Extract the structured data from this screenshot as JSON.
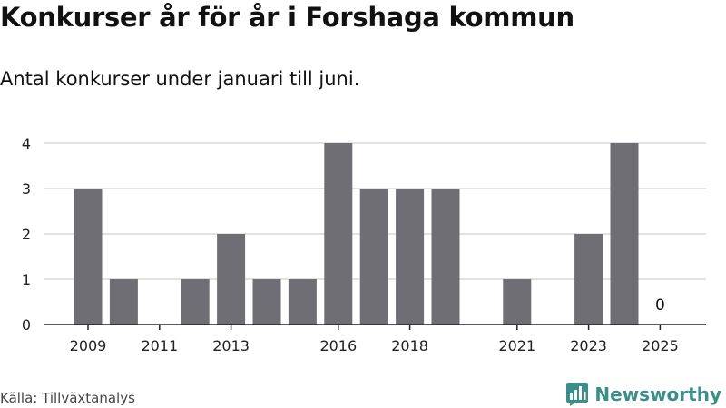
{
  "header": {
    "title": "Konkurser år för år i Forshaga kommun",
    "subtitle": "Antal konkurser under januari till juni."
  },
  "footer": {
    "source": "Källa: Tillväxtanalys",
    "brand": "Newsworthy"
  },
  "colors": {
    "bar": "#6f6e74",
    "grid": "#d9d9d9",
    "axis": "#222222",
    "brand": "#3a8f8a"
  },
  "icons": {
    "logo": "bar-chart-speech-bubble-icon"
  },
  "chart_data": {
    "type": "bar",
    "categories": [
      "2009",
      "2010",
      "2011",
      "2012",
      "2013",
      "2014",
      "2015",
      "2016",
      "2017",
      "2018",
      "2019",
      "2020",
      "2021",
      "2022",
      "2023",
      "2024",
      "2025"
    ],
    "values": [
      3,
      1,
      0,
      1,
      2,
      1,
      1,
      4,
      3,
      3,
      3,
      0,
      1,
      0,
      2,
      4,
      0
    ],
    "x_tick_labels": [
      "2009",
      "2011",
      "2013",
      "2016",
      "2018",
      "2021",
      "2023",
      "2025"
    ],
    "y_ticks": [
      0,
      1,
      2,
      3,
      4
    ],
    "ylim": [
      0,
      4
    ],
    "annotations": [
      {
        "category": "2025",
        "text": "0"
      }
    ],
    "grid": true,
    "legend": "none",
    "title": "Konkurser år för år i Forshaga kommun",
    "subtitle": "Antal konkurser under januari till juni.",
    "xlabel": "",
    "ylabel": ""
  }
}
